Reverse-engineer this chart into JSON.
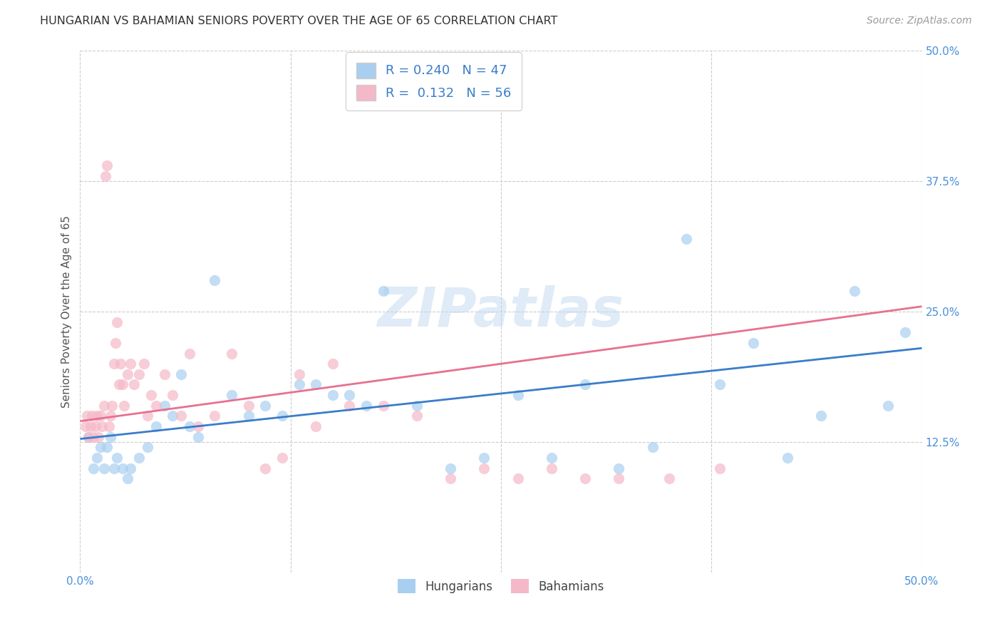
{
  "title": "HUNGARIAN VS BAHAMIAN SENIORS POVERTY OVER THE AGE OF 65 CORRELATION CHART",
  "source": "Source: ZipAtlas.com",
  "ylabel": "Seniors Poverty Over the Age of 65",
  "xlim": [
    0.0,
    0.5
  ],
  "ylim": [
    0.0,
    0.5
  ],
  "hungarian_R": 0.24,
  "hungarian_N": 47,
  "bahamian_R": 0.132,
  "bahamian_N": 56,
  "hungarian_color": "#a8cff0",
  "bahamian_color": "#f5b8c8",
  "hungarian_line_color": "#3a7dc9",
  "bahamian_line_color": "#e87090",
  "tick_label_color": "#4a90d9",
  "watermark": "ZIPatlas",
  "hung_x": [
    0.005,
    0.008,
    0.01,
    0.012,
    0.014,
    0.016,
    0.018,
    0.02,
    0.022,
    0.025,
    0.028,
    0.03,
    0.035,
    0.04,
    0.045,
    0.05,
    0.055,
    0.06,
    0.065,
    0.07,
    0.08,
    0.09,
    0.1,
    0.11,
    0.12,
    0.13,
    0.14,
    0.15,
    0.16,
    0.17,
    0.18,
    0.2,
    0.22,
    0.24,
    0.26,
    0.28,
    0.3,
    0.32,
    0.34,
    0.36,
    0.38,
    0.4,
    0.42,
    0.44,
    0.46,
    0.48,
    0.49
  ],
  "hung_y": [
    0.13,
    0.1,
    0.11,
    0.12,
    0.1,
    0.12,
    0.13,
    0.1,
    0.11,
    0.1,
    0.09,
    0.1,
    0.11,
    0.12,
    0.14,
    0.16,
    0.15,
    0.19,
    0.14,
    0.13,
    0.28,
    0.17,
    0.15,
    0.16,
    0.15,
    0.18,
    0.18,
    0.17,
    0.17,
    0.16,
    0.27,
    0.16,
    0.1,
    0.11,
    0.17,
    0.11,
    0.18,
    0.1,
    0.12,
    0.32,
    0.18,
    0.22,
    0.11,
    0.15,
    0.27,
    0.16,
    0.23
  ],
  "bah_x": [
    0.003,
    0.004,
    0.005,
    0.006,
    0.007,
    0.008,
    0.009,
    0.01,
    0.011,
    0.012,
    0.013,
    0.014,
    0.015,
    0.016,
    0.017,
    0.018,
    0.019,
    0.02,
    0.021,
    0.022,
    0.023,
    0.024,
    0.025,
    0.026,
    0.028,
    0.03,
    0.032,
    0.035,
    0.038,
    0.04,
    0.042,
    0.045,
    0.05,
    0.055,
    0.06,
    0.065,
    0.07,
    0.08,
    0.09,
    0.1,
    0.11,
    0.12,
    0.13,
    0.14,
    0.15,
    0.16,
    0.18,
    0.2,
    0.22,
    0.24,
    0.26,
    0.28,
    0.3,
    0.32,
    0.35,
    0.38
  ],
  "bah_y": [
    0.14,
    0.15,
    0.13,
    0.14,
    0.15,
    0.13,
    0.14,
    0.15,
    0.13,
    0.15,
    0.14,
    0.16,
    0.38,
    0.39,
    0.14,
    0.15,
    0.16,
    0.2,
    0.22,
    0.24,
    0.18,
    0.2,
    0.18,
    0.16,
    0.19,
    0.2,
    0.18,
    0.19,
    0.2,
    0.15,
    0.17,
    0.16,
    0.19,
    0.17,
    0.15,
    0.21,
    0.14,
    0.15,
    0.21,
    0.16,
    0.1,
    0.11,
    0.19,
    0.14,
    0.2,
    0.16,
    0.16,
    0.15,
    0.09,
    0.1,
    0.09,
    0.1,
    0.09,
    0.09,
    0.09,
    0.1
  ]
}
